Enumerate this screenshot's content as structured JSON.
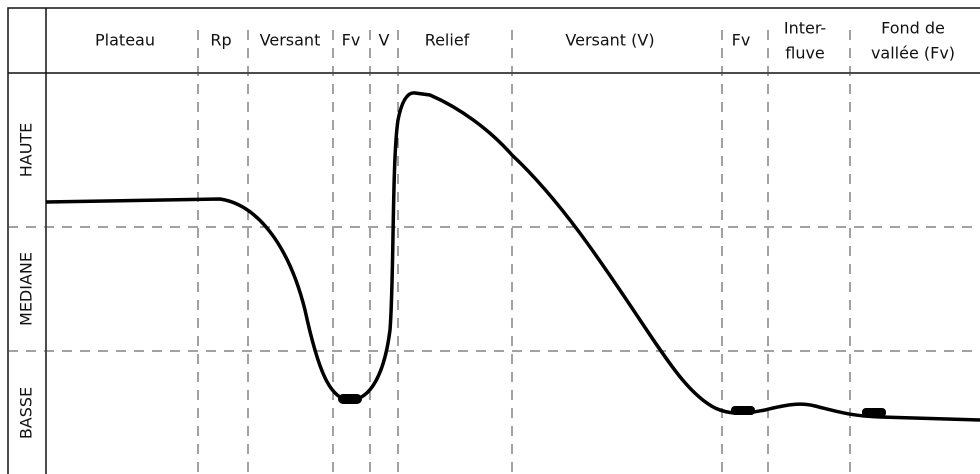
{
  "header": {
    "columns": [
      {
        "lines": [
          "Plateau"
        ]
      },
      {
        "lines": [
          "Rp"
        ]
      },
      {
        "lines": [
          "Versant"
        ]
      },
      {
        "lines": [
          "Fv"
        ]
      },
      {
        "lines": [
          "V"
        ]
      },
      {
        "lines": [
          "Relief"
        ]
      },
      {
        "lines": [
          "Versant (V)"
        ]
      },
      {
        "lines": [
          "Fv"
        ]
      },
      {
        "lines": [
          "Inter-",
          "fluve"
        ]
      },
      {
        "lines": [
          "Fond de",
          "vallée (Fv)"
        ]
      }
    ]
  },
  "zones": [
    "HAUTE",
    "MEDIANE",
    "BASSE"
  ]
}
